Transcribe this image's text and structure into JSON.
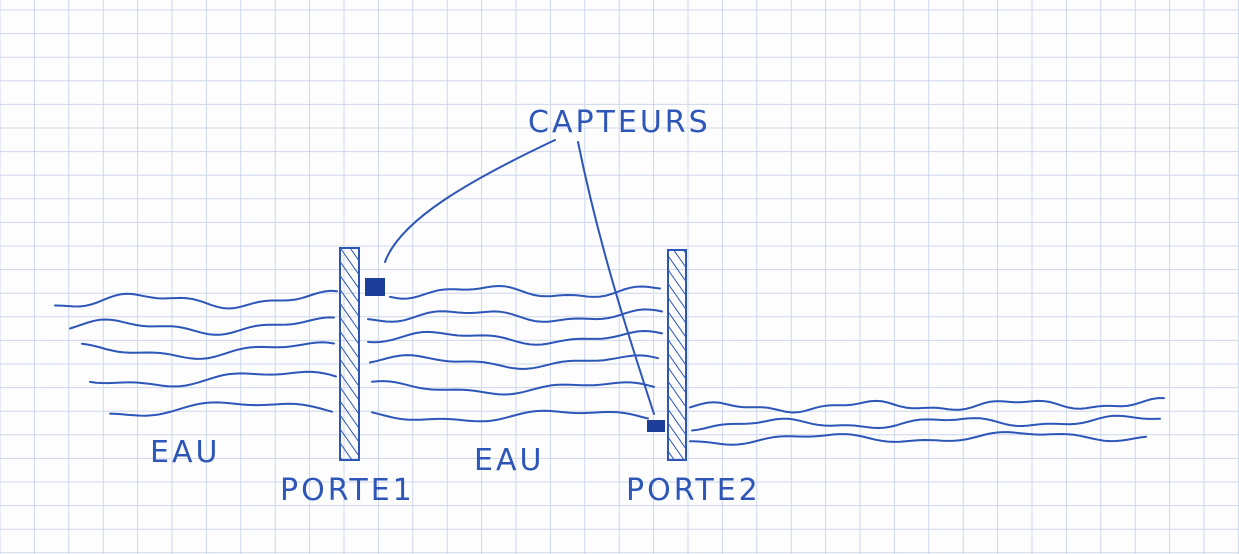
{
  "diagram": {
    "sensors_label": "CAPTEURS",
    "water_left": "EAU",
    "gate_1": "PORTE1",
    "water_middle": "EAU",
    "gate_2": "PORTE2"
  }
}
